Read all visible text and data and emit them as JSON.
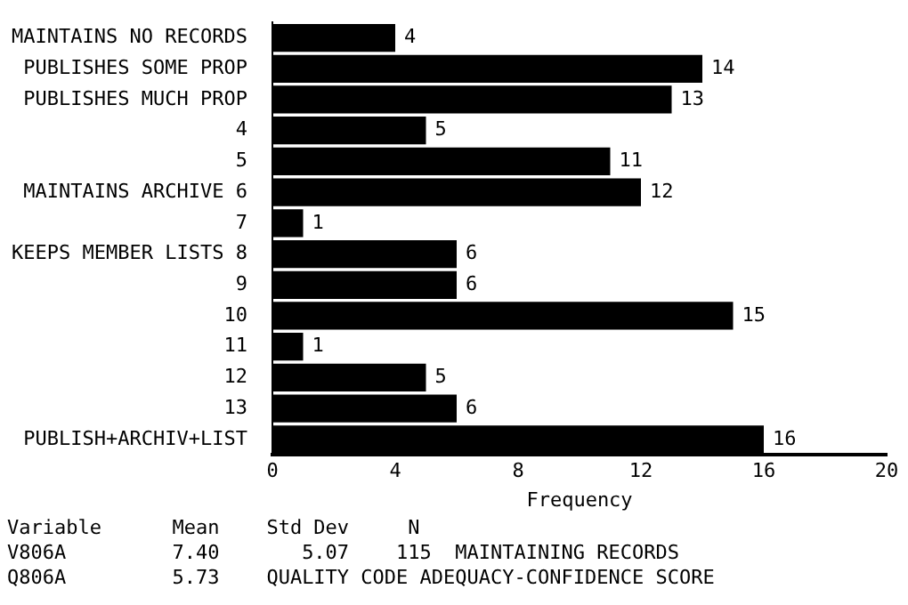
{
  "chart_data": {
    "type": "bar",
    "orientation": "horizontal",
    "xlabel": "Frequency",
    "categories": [
      "MAINTAINS NO RECORDS",
      "PUBLISHES SOME PROP",
      "PUBLISHES MUCH PROP",
      "4",
      "5",
      "MAINTAINS ARCHIVE 6",
      "7",
      "KEEPS MEMBER LISTS 8",
      "9",
      "10",
      "11",
      "12",
      "13",
      "PUBLISH+ARCHIV+LIST"
    ],
    "values": [
      4,
      14,
      13,
      5,
      11,
      12,
      1,
      6,
      6,
      15,
      1,
      5,
      6,
      16
    ],
    "color": "#000000",
    "xlim": [
      0,
      20
    ],
    "xticks": [
      0,
      4,
      8,
      12,
      16,
      20
    ],
    "grid": false,
    "legend": false,
    "data_labels": true,
    "annotations": [
      "Variable      Mean    Std Dev     N",
      "V806A         7.40       5.07    115  MAINTAINING RECORDS",
      "Q806A         5.73    QUALITY CODE ADEQUACY-CONFIDENCE SCORE"
    ]
  }
}
